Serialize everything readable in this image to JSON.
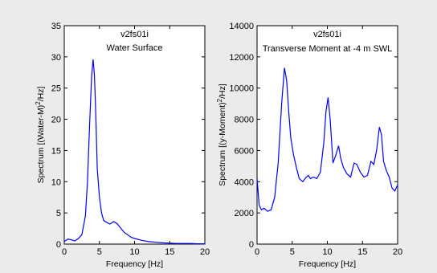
{
  "chart_data": [
    {
      "type": "line",
      "title": "v2fs01i",
      "annotation": "Water Surface",
      "xlabel": "Frequency [Hz]",
      "ylabel": "Spectrum [(Water-M)",
      "ylabel_sup": "2",
      "ylabel_tail": "/Hz]",
      "xlim": [
        0,
        20
      ],
      "ylim": [
        0,
        35
      ],
      "xticks": [
        "0",
        "5",
        "10",
        "15",
        "20"
      ],
      "yticks": [
        "0",
        "5",
        "10",
        "15",
        "20",
        "25",
        "30",
        "35"
      ],
      "line_color": "#0000ff",
      "x": [
        0,
        0.5,
        1,
        1.5,
        2,
        2.5,
        3,
        3.3,
        3.6,
        3.9,
        4.1,
        4.3,
        4.5,
        4.7,
        5.0,
        5.3,
        5.6,
        6.0,
        6.5,
        7.0,
        7.5,
        8.0,
        8.5,
        9.0,
        9.5,
        10,
        11,
        12,
        13,
        14,
        15,
        16,
        17,
        18,
        19,
        20
      ],
      "y": [
        0.4,
        0.8,
        0.7,
        0.5,
        0.9,
        1.5,
        4.5,
        10,
        19,
        27,
        29.6,
        27,
        20,
        12,
        7.5,
        5,
        3.8,
        3.5,
        3.2,
        3.6,
        3.3,
        2.6,
        1.9,
        1.5,
        1.1,
        0.9,
        0.6,
        0.4,
        0.3,
        0.2,
        0.15,
        0.1,
        0.1,
        0.1,
        0.05,
        0.05
      ]
    },
    {
      "type": "line",
      "title": "v2fs01i",
      "annotation": "Transverse Moment at -4 m SWL",
      "xlabel": "Frequency [Hz]",
      "ylabel": "Spectrum [(y-Moment)",
      "ylabel_sup": "2",
      "ylabel_tail": "/Hz]",
      "xlim": [
        0,
        20
      ],
      "ylim": [
        0,
        14000
      ],
      "xticks": [
        "0",
        "5",
        "10",
        "15",
        "20"
      ],
      "yticks": [
        "0",
        "2000",
        "4000",
        "6000",
        "8000",
        "10000",
        "12000",
        "14000"
      ],
      "line_color": "#0000ff",
      "x": [
        0,
        0.3,
        0.6,
        1.0,
        1.5,
        2.0,
        2.5,
        3.0,
        3.5,
        3.9,
        4.2,
        4.5,
        4.8,
        5.2,
        5.6,
        6.0,
        6.5,
        7.0,
        7.3,
        7.6,
        8.0,
        8.5,
        9.0,
        9.5,
        9.8,
        10.1,
        10.4,
        10.8,
        11.2,
        11.6,
        11.9,
        12.3,
        12.8,
        13.3,
        13.8,
        14.2,
        14.7,
        15.2,
        15.7,
        16.2,
        16.6,
        17.0,
        17.4,
        17.7,
        18.0,
        18.4,
        18.8,
        19.2,
        19.6,
        20.0
      ],
      "y": [
        4200,
        2500,
        2200,
        2300,
        2100,
        2200,
        3000,
        5200,
        9000,
        11300,
        10500,
        8500,
        6800,
        5700,
        4900,
        4200,
        4000,
        4300,
        4400,
        4200,
        4300,
        4200,
        4600,
        6500,
        8500,
        9400,
        8000,
        5200,
        5700,
        6300,
        5500,
        4900,
        4500,
        4300,
        5200,
        5100,
        4600,
        4300,
        4400,
        5300,
        5100,
        6000,
        7500,
        7000,
        5300,
        4700,
        4300,
        3600,
        3400,
        3800
      ]
    }
  ]
}
